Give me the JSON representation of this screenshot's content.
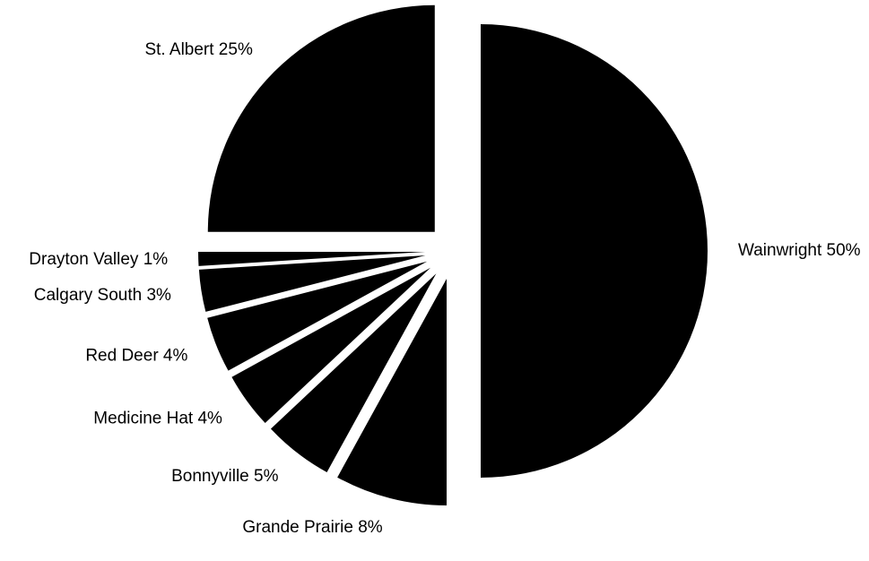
{
  "chart_data": {
    "type": "pie",
    "title": "",
    "fill_color": "#000000",
    "background_color": "#ffffff",
    "legend": "none",
    "exploded": true,
    "direction": "clockwise",
    "start": "12 o'clock",
    "slices": [
      {
        "label": "Wainwright",
        "value": 50,
        "display": "Wainwright  50%"
      },
      {
        "label": "Grande Prairie",
        "value": 8,
        "display": "Grande Prairie  8%"
      },
      {
        "label": "Bonnyville",
        "value": 5,
        "display": "Bonnyville  5%"
      },
      {
        "label": "Medicine Hat",
        "value": 4,
        "display": "Medicine Hat  4%"
      },
      {
        "label": "Red Deer",
        "value": 4,
        "display": "Red Deer  4%"
      },
      {
        "label": "Calgary South",
        "value": 3,
        "display": "Calgary South  3%"
      },
      {
        "label": "Drayton Valley",
        "value": 1,
        "display": "Drayton Valley  1%"
      },
      {
        "label": "St. Albert",
        "value": 25,
        "display": "St. Albert  25%"
      }
    ]
  }
}
